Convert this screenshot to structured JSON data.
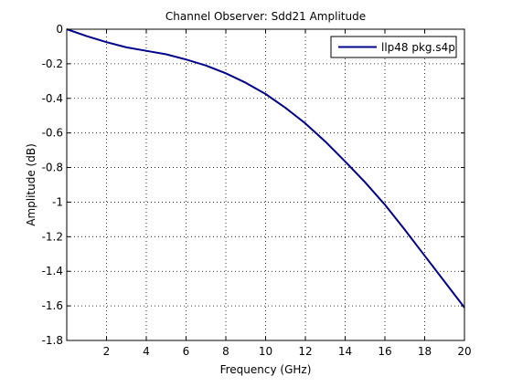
{
  "chart_data": {
    "type": "line",
    "title": "Channel Observer: Sdd21 Amplitude",
    "xlabel": "Frequency (GHz)",
    "ylabel": "Amplitude (dB)",
    "xlim": [
      0,
      20
    ],
    "ylim": [
      -1.8,
      0
    ],
    "xticks": [
      2,
      4,
      6,
      8,
      10,
      12,
      14,
      16,
      18,
      20
    ],
    "xtick_labels": [
      "2",
      "4",
      "6",
      "8",
      "10",
      "12",
      "14",
      "16",
      "18",
      "20"
    ],
    "yticks": [
      0,
      -0.2,
      -0.4,
      -0.6,
      -0.8,
      -1,
      -1.2,
      -1.4,
      -1.6,
      -1.8
    ],
    "ytick_labels": [
      "0",
      "-0.2",
      "-0.4",
      "-0.6",
      "-0.8",
      "-1",
      "-1.2",
      "-1.4",
      "-1.6",
      "-1.8"
    ],
    "grid": true,
    "grid_style": "dotted",
    "legend_position": "top-right",
    "series": [
      {
        "name": "llp48 pkg.s4p",
        "color": "#00008b",
        "x": [
          0,
          1,
          2,
          3,
          4,
          5,
          6,
          7,
          8,
          9,
          10,
          11,
          12,
          13,
          14,
          15,
          16,
          17,
          18,
          19,
          20
        ],
        "y": [
          0,
          -0.04,
          -0.075,
          -0.105,
          -0.125,
          -0.145,
          -0.175,
          -0.21,
          -0.255,
          -0.31,
          -0.375,
          -0.455,
          -0.545,
          -0.65,
          -0.765,
          -0.885,
          -1.015,
          -1.16,
          -1.31,
          -1.46,
          -1.61
        ]
      }
    ]
  }
}
